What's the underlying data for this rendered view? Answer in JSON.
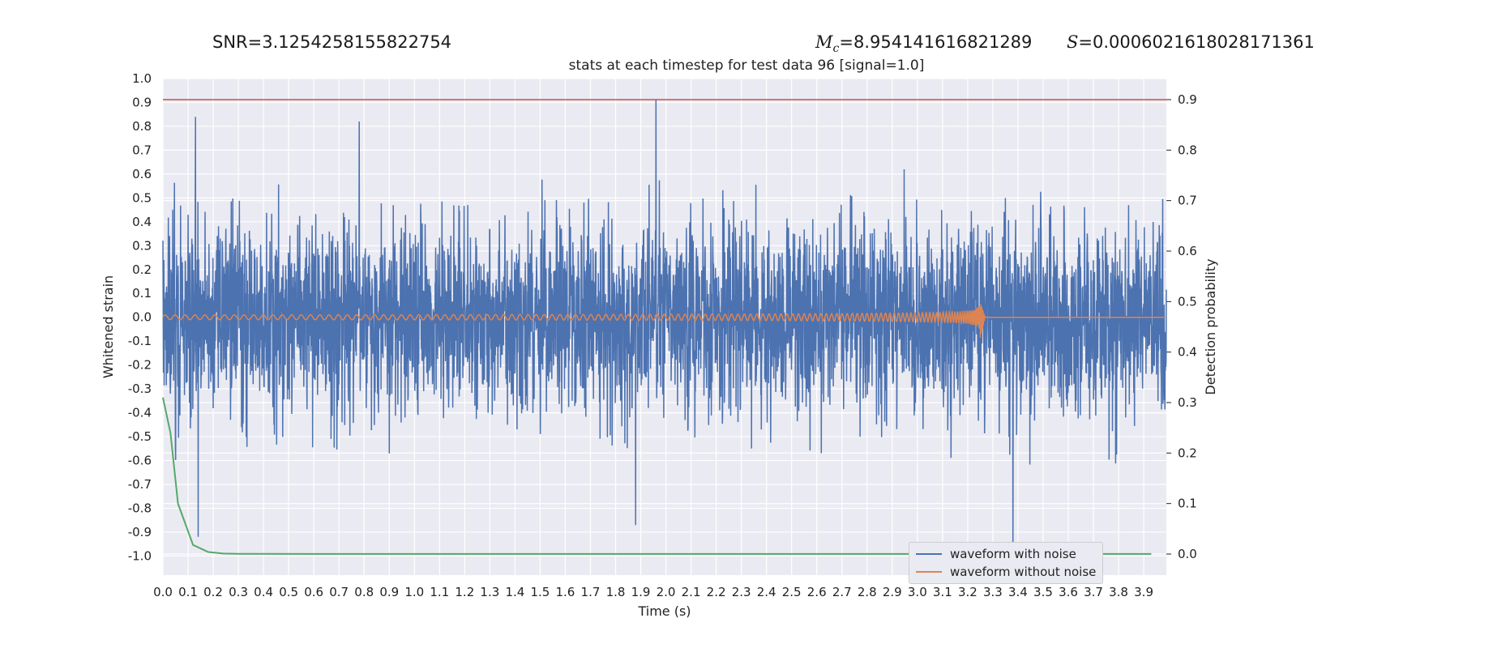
{
  "header": {
    "snr": "SNR=3.1254258155822754",
    "mc_symbol": "M",
    "mc_sub": "c",
    "mc_value": "=8.954141616821289",
    "s_symbol": "S",
    "s_value": "=0.0006021618028171361"
  },
  "colors": {
    "noise": "#4c72b0",
    "clean": "#dd8452",
    "probability": "#55a868",
    "threshold": "#c44e52",
    "plot_bg": "#eaeaf2",
    "grid": "#ffffff"
  },
  "chart_data": {
    "type": "line",
    "title": "stats at each timestep for test data 96 [signal=1.0]",
    "xlabel": "Time (s)",
    "ylabel": "Whitened strain",
    "y2label": "Detection probability",
    "xlim": [
      0.0,
      3.99
    ],
    "ylim": [
      -1.08,
      1.0
    ],
    "y2lim": [
      -0.045,
      0.9
    ],
    "xticks": [
      "0.0",
      "0.1",
      "0.2",
      "0.3",
      "0.4",
      "0.5",
      "0.6",
      "0.7",
      "0.8",
      "0.9",
      "1.0",
      "1.1",
      "1.2",
      "1.3",
      "1.4",
      "1.5",
      "1.6",
      "1.7",
      "1.8",
      "1.9",
      "2.0",
      "2.1",
      "2.2",
      "2.3",
      "2.4",
      "2.5",
      "2.6",
      "2.7",
      "2.8",
      "2.9",
      "3.0",
      "3.1",
      "3.2",
      "3.3",
      "3.4",
      "3.5",
      "3.6",
      "3.7",
      "3.8",
      "3.9"
    ],
    "yticks": [
      "1.0",
      "0.9",
      "0.8",
      "0.7",
      "0.6",
      "0.5",
      "0.4",
      "0.3",
      "0.2",
      "0.1",
      "0.0",
      "-0.1",
      "-0.2",
      "-0.3",
      "-0.4",
      "-0.5",
      "-0.6",
      "-0.7",
      "-0.8",
      "-0.9",
      "-1.0"
    ],
    "y2ticks": [
      "0.9",
      "0.8",
      "0.7",
      "0.6",
      "0.5",
      "0.4",
      "0.3",
      "0.2",
      "0.1",
      "0.0"
    ],
    "grid": true,
    "legend_position": "lower-right",
    "series": [
      {
        "name": "waveform with noise",
        "axis": "left",
        "description_peaks": [
          [
            0.13,
            0.84
          ],
          [
            0.78,
            0.82
          ],
          [
            1.96,
            0.91
          ],
          [
            0.14,
            -0.92
          ],
          [
            3.38,
            -1.0
          ],
          [
            1.88,
            -0.87
          ]
        ]
      },
      {
        "name": "waveform without noise",
        "axis": "left",
        "amplitude_start": 0.01,
        "amplitude_peak": 0.09,
        "merger_time": 3.25,
        "ringdown_end": 3.27
      },
      {
        "name": "",
        "axis": "right",
        "x": [
          0.0,
          0.03,
          0.06,
          0.12,
          0.18,
          0.24,
          0.3,
          0.4,
          0.6,
          1.0,
          2.0,
          3.0,
          3.93
        ],
        "values": [
          0.31,
          0.24,
          0.1,
          0.018,
          0.004,
          0.001,
          0.0005,
          0.0003,
          0.0002,
          0.0002,
          0.0002,
          0.0002,
          0.0002
        ]
      },
      {
        "name": "",
        "axis": "right",
        "x": [
          0.0,
          3.99
        ],
        "values": [
          0.9,
          0.9
        ]
      }
    ]
  }
}
